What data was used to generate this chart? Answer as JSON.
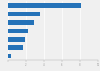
{
  "values": [
    8150,
    3560,
    2900,
    2200,
    1900,
    1650,
    380
  ],
  "bar_color": "#2472b8",
  "background_color": "#f0f0f0",
  "bar_height": 0.55,
  "xlim": [
    0,
    10000
  ],
  "xticks": [
    0,
    2000,
    4000,
    6000,
    8000,
    10000
  ],
  "grid_color": "#ffffff",
  "tick_color": "#999999"
}
